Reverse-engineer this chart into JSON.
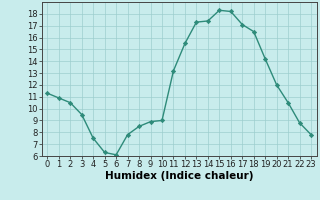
{
  "x": [
    0,
    1,
    2,
    3,
    4,
    5,
    6,
    7,
    8,
    9,
    10,
    11,
    12,
    13,
    14,
    15,
    16,
    17,
    18,
    19,
    20,
    21,
    22,
    23
  ],
  "y": [
    11.3,
    10.9,
    10.5,
    9.5,
    7.5,
    6.3,
    6.1,
    7.8,
    8.5,
    8.9,
    9.0,
    13.2,
    15.5,
    17.3,
    17.4,
    18.3,
    18.2,
    17.1,
    16.5,
    14.2,
    12.0,
    10.5,
    8.8,
    7.8
  ],
  "line_color": "#2e8b7a",
  "marker": "D",
  "marker_size": 2.2,
  "bg_color": "#c8ecec",
  "grid_color": "#9dcece",
  "xlabel": "Humidex (Indice chaleur)",
  "ylim": [
    6,
    19
  ],
  "xlim": [
    -0.5,
    23.5
  ],
  "yticks": [
    6,
    7,
    8,
    9,
    10,
    11,
    12,
    13,
    14,
    15,
    16,
    17,
    18
  ],
  "xticks": [
    0,
    1,
    2,
    3,
    4,
    5,
    6,
    7,
    8,
    9,
    10,
    11,
    12,
    13,
    14,
    15,
    16,
    17,
    18,
    19,
    20,
    21,
    22,
    23
  ],
  "xtick_labels": [
    "0",
    "1",
    "2",
    "3",
    "4",
    "5",
    "6",
    "7",
    "8",
    "9",
    "10",
    "11",
    "12",
    "13",
    "14",
    "15",
    "16",
    "17",
    "18",
    "19",
    "20",
    "21",
    "22",
    "23"
  ],
  "ytick_labels": [
    "6",
    "7",
    "8",
    "9",
    "10",
    "11",
    "12",
    "13",
    "14",
    "15",
    "16",
    "17",
    "18"
  ],
  "tick_fontsize": 6.0,
  "xlabel_fontsize": 7.5,
  "linewidth": 1.0
}
